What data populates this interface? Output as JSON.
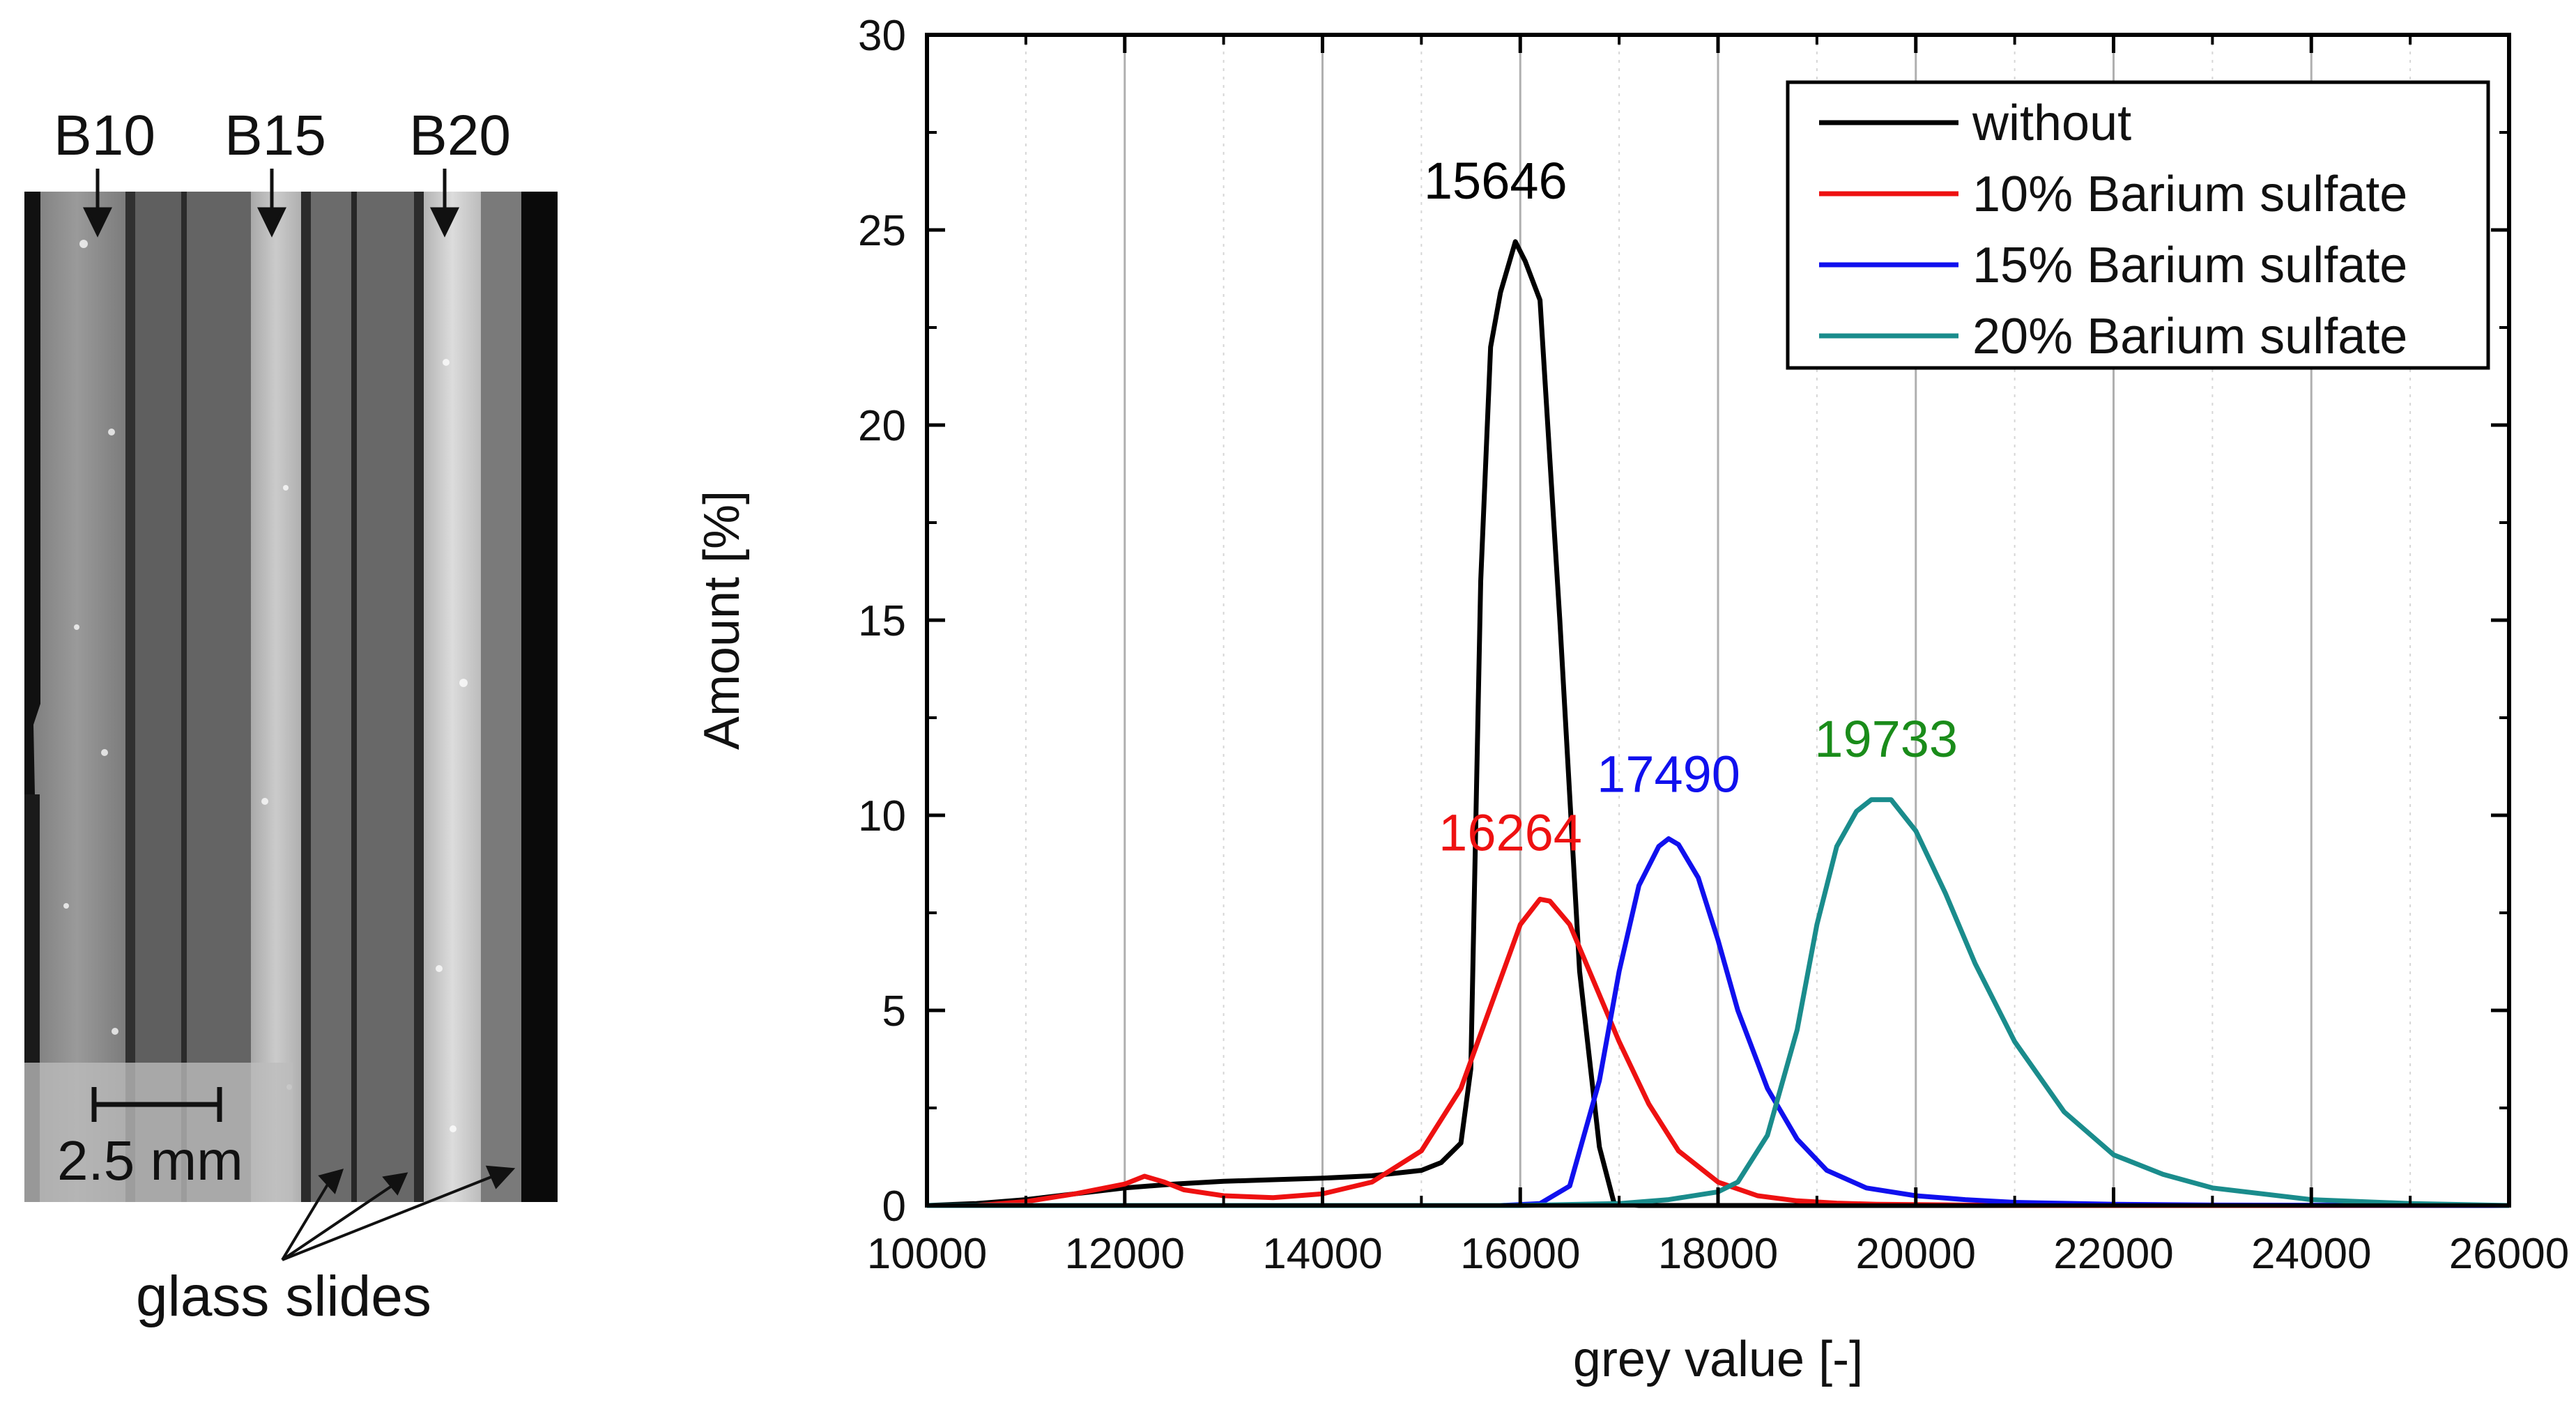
{
  "micrograph": {
    "sample_labels": [
      "B10",
      "B15",
      "B20"
    ],
    "scale_bar_label": "2.5 mm",
    "glass_slides_label": "glass slides"
  },
  "chart_data": {
    "type": "line",
    "title": "",
    "xlabel": "grey value [-]",
    "ylabel": "Amount [%]",
    "xlim": [
      10000,
      26000
    ],
    "ylim": [
      0,
      30
    ],
    "xticks": [
      10000,
      12000,
      14000,
      16000,
      18000,
      20000,
      22000,
      24000,
      26000
    ],
    "yticks": [
      0,
      5,
      10,
      15,
      20,
      25,
      30
    ],
    "xtick_labels": [
      "10000",
      "12000",
      "14000",
      "16000",
      "18000",
      "20000",
      "22000",
      "24000",
      "26000"
    ],
    "ytick_labels": [
      "0",
      "5",
      "10",
      "15",
      "20",
      "25",
      "30"
    ],
    "grid": "vertical",
    "legend_position": "top-right",
    "series": [
      {
        "name": "without",
        "color": "#000000",
        "peak_label": "15646",
        "peak_label_at": [
          15750,
          25.8
        ],
        "x": [
          10000,
          10500,
          11000,
          11500,
          12000,
          12500,
          13000,
          13500,
          14000,
          14500,
          15000,
          15200,
          15400,
          15500,
          15600,
          15700,
          15800,
          15950,
          16050,
          16200,
          16400,
          16600,
          16800,
          16950,
          17200,
          18000,
          26000
        ],
        "y": [
          0,
          0.05,
          0.15,
          0.3,
          0.45,
          0.55,
          0.62,
          0.66,
          0.7,
          0.76,
          0.9,
          1.1,
          1.6,
          3.5,
          16,
          22,
          23.4,
          24.7,
          24.2,
          23.2,
          15,
          6,
          1.5,
          0.05,
          0,
          0,
          0
        ]
      },
      {
        "name": "10% Barium sulfate",
        "color": "#ee1111",
        "peak_label": "16264",
        "peak_label_at": [
          15900,
          9.1
        ],
        "x": [
          10500,
          11000,
          11500,
          12000,
          12200,
          12400,
          12600,
          13000,
          13500,
          14000,
          14500,
          15000,
          15400,
          15800,
          16000,
          16200,
          16300,
          16500,
          16700,
          17000,
          17300,
          17600,
          18000,
          18400,
          18800,
          19200,
          19600,
          20500,
          21500,
          26000
        ],
        "y": [
          0,
          0.1,
          0.3,
          0.55,
          0.75,
          0.6,
          0.4,
          0.25,
          0.2,
          0.3,
          0.6,
          1.4,
          3.0,
          5.8,
          7.2,
          7.85,
          7.8,
          7.2,
          6.0,
          4.2,
          2.6,
          1.4,
          0.6,
          0.25,
          0.12,
          0.06,
          0.03,
          0.01,
          0,
          0
        ]
      },
      {
        "name": "15% Barium sulfate",
        "color": "#1010ee",
        "peak_label": "17490",
        "peak_label_at": [
          17500,
          10.6
        ],
        "x": [
          10000,
          15800,
          16200,
          16500,
          16800,
          17000,
          17200,
          17400,
          17500,
          17600,
          17800,
          18000,
          18200,
          18500,
          18800,
          19100,
          19500,
          20000,
          20500,
          21000,
          22000,
          23000,
          26000
        ],
        "y": [
          0,
          0,
          0.05,
          0.5,
          3.2,
          6.0,
          8.2,
          9.2,
          9.4,
          9.25,
          8.4,
          6.8,
          5.0,
          3.0,
          1.7,
          0.9,
          0.45,
          0.25,
          0.15,
          0.08,
          0.03,
          0.01,
          0
        ]
      },
      {
        "name": "20% Barium sulfate",
        "color": "#1a8c8c",
        "peak_label": "19733",
        "peak_label_at": [
          19700,
          11.5
        ],
        "x": [
          10000,
          16000,
          17000,
          17500,
          18000,
          18200,
          18500,
          18800,
          19000,
          19200,
          19400,
          19550,
          19750,
          20000,
          20300,
          20600,
          21000,
          21500,
          22000,
          22500,
          23000,
          24000,
          25000,
          26000
        ],
        "y": [
          0,
          0,
          0.05,
          0.15,
          0.35,
          0.6,
          1.8,
          4.5,
          7.2,
          9.2,
          10.1,
          10.4,
          10.4,
          9.6,
          8.0,
          6.2,
          4.2,
          2.4,
          1.3,
          0.8,
          0.45,
          0.15,
          0.05,
          0
        ]
      }
    ]
  }
}
